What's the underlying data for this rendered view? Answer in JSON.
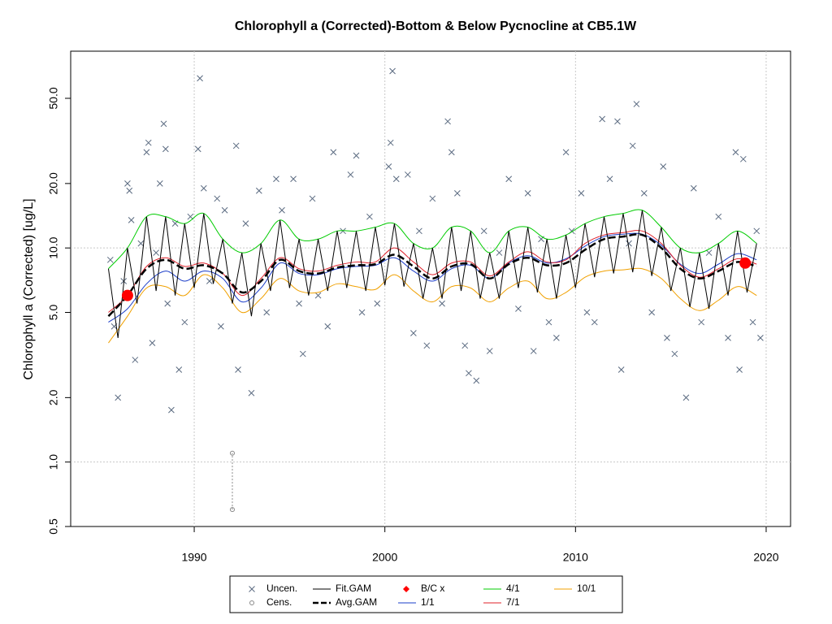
{
  "chart_data": {
    "type": "line",
    "title": "Chlorophyll a (Corrected)-Bottom & Below Pycnocline at CB5.1W",
    "y_label": "Chlorophyll a (Corrected) [ug/L]",
    "log_y": true,
    "xlim": [
      1983.52,
      2021.28
    ],
    "ylim": [
      0.5,
      83
    ],
    "xticks": [
      1990,
      2000,
      2010,
      2020
    ],
    "yticks": [
      0.5,
      {
        "value": 1,
        "label": "1.0"
      },
      {
        "value": 2,
        "label": "2.0"
      },
      {
        "value": 5,
        "label": "5.0"
      },
      {
        "value": 10,
        "label": "10.0"
      },
      {
        "value": 20,
        "label": "20.0"
      },
      {
        "value": 50,
        "label": "50.0"
      }
    ],
    "xgrid": [
      1990,
      2000,
      2010,
      2020
    ],
    "ygrid": [
      1,
      10
    ],
    "x": [
      1985.5,
      1986.5,
      1987.5,
      1988.5,
      1989.5,
      1990.5,
      1991.5,
      1992.5,
      1993.5,
      1994.5,
      1995.5,
      1996.5,
      1997.5,
      1998.5,
      1999.5,
      2000.5,
      2001.5,
      2002.5,
      2003.5,
      2004.5,
      2005.5,
      2006.5,
      2007.5,
      2008.5,
      2009.5,
      2010.5,
      2011.5,
      2012.5,
      2013.5,
      2014.5,
      2015.5,
      2016.5,
      2017.5,
      2018.5,
      2019.5
    ],
    "series": [
      {
        "name": "Uncen.",
        "kind": "points",
        "color": "#5a6a80",
        "x": [
          1985.6,
          1985.8,
          1986.0,
          1986.3,
          1986.5,
          1986.6,
          1986.7,
          1986.9,
          1987.2,
          1987.5,
          1987.6,
          1987.8,
          1988.0,
          1988.2,
          1988.4,
          1988.5,
          1988.6,
          1988.8,
          1989.0,
          1989.2,
          1989.5,
          1989.8,
          1990.2,
          1990.3,
          1990.5,
          1990.8,
          1991.2,
          1991.4,
          1991.6,
          1992.2,
          1992.3,
          1992.7,
          1993.0,
          1993.4,
          1993.8,
          1994.3,
          1994.6,
          1995.2,
          1995.5,
          1995.7,
          1996.2,
          1996.5,
          1997.0,
          1997.3,
          1997.8,
          1998.2,
          1998.5,
          1998.8,
          1999.2,
          1999.6,
          2000.2,
          2000.3,
          2000.4,
          2000.6,
          2001.2,
          2001.5,
          2001.8,
          2002.2,
          2002.5,
          2003.0,
          2003.3,
          2003.5,
          2003.8,
          2004.2,
          2004.4,
          2004.8,
          2005.2,
          2005.5,
          2006.0,
          2006.5,
          2007.0,
          2007.5,
          2007.8,
          2008.2,
          2008.6,
          2009.0,
          2009.5,
          2009.8,
          2010.3,
          2010.6,
          2011.0,
          2011.4,
          2011.8,
          2012.2,
          2012.4,
          2012.8,
          2013.0,
          2013.2,
          2013.6,
          2014.0,
          2014.6,
          2014.8,
          2015.2,
          2015.8,
          2016.2,
          2016.6,
          2017.0,
          2017.5,
          2018.0,
          2018.4,
          2018.6,
          2018.8,
          2019.3,
          2019.5,
          2019.7
        ],
        "values": [
          8.8,
          4.3,
          2.0,
          7.0,
          20,
          18.5,
          13.5,
          3.0,
          10.5,
          28,
          31,
          3.6,
          9.5,
          20,
          38,
          29,
          5.5,
          1.75,
          13,
          2.7,
          4.5,
          14,
          29,
          62,
          19,
          7.0,
          17,
          4.3,
          15,
          30,
          2.7,
          13,
          2.1,
          18.5,
          5.0,
          21,
          15,
          21,
          5.5,
          3.2,
          17,
          6.0,
          4.3,
          28,
          12,
          22,
          27,
          5.0,
          14,
          5.5,
          24,
          31,
          67,
          21,
          22,
          4.0,
          12,
          3.5,
          17,
          5.5,
          39,
          28,
          18,
          3.5,
          2.6,
          2.4,
          12,
          3.3,
          9.5,
          21,
          5.2,
          18,
          3.3,
          11,
          4.5,
          3.8,
          28,
          12,
          18,
          5.0,
          4.5,
          40,
          21,
          39,
          2.7,
          10.5,
          30,
          47,
          18,
          5.0,
          24,
          3.8,
          3.2,
          2.0,
          19,
          4.5,
          9.5,
          14,
          3.8,
          28,
          2.7,
          26,
          4.5,
          12,
          3.8
        ]
      },
      {
        "name": "Cens.",
        "kind": "censored",
        "color": "#888888",
        "x": [
          1992
        ],
        "low": [
          0.6
        ],
        "high": [
          1.1
        ]
      },
      {
        "name": "Fit.GAM",
        "kind": "line",
        "color": "#000000",
        "x": [
          1985.5,
          1986,
          1986.5,
          1987,
          1987.5,
          1988,
          1988.5,
          1989,
          1989.5,
          1990,
          1990.5,
          1991,
          1991.5,
          1992,
          1992.5,
          1993,
          1993.5,
          1994,
          1994.5,
          1995,
          1995.5,
          1996,
          1996.5,
          1997,
          1997.5,
          1998,
          1998.5,
          1999,
          1999.5,
          2000,
          2000.5,
          2001,
          2001.5,
          2002,
          2002.5,
          2003,
          2003.5,
          2004,
          2004.5,
          2005,
          2005.5,
          2006,
          2006.5,
          2007,
          2007.5,
          2008,
          2008.5,
          2009,
          2009.5,
          2010,
          2010.5,
          2011,
          2011.5,
          2012,
          2012.5,
          2013,
          2013.5,
          2014,
          2014.5,
          2015,
          2015.5,
          2016,
          2016.5,
          2017,
          2017.5,
          2018,
          2018.5,
          2019,
          2019.5
        ],
        "values": [
          8.0,
          3.8,
          10.0,
          5.5,
          14.0,
          6.3,
          14.0,
          6.0,
          13.0,
          6.5,
          14.5,
          6.8,
          11.0,
          5.5,
          9.5,
          4.8,
          10.5,
          6.3,
          13.5,
          6.5,
          11.0,
          6.0,
          11.0,
          6.3,
          12.0,
          6.5,
          12.0,
          6.3,
          12.5,
          6.7,
          13.0,
          6.6,
          10.5,
          5.8,
          10.0,
          5.8,
          12.5,
          6.3,
          12.0,
          5.8,
          9.5,
          5.8,
          12.0,
          6.5,
          12.5,
          6.2,
          11.0,
          5.8,
          11.5,
          6.5,
          13.0,
          7.3,
          14.0,
          7.6,
          14.5,
          7.7,
          15.0,
          7.4,
          12.5,
          6.3,
          10.0,
          5.3,
          9.5,
          5.2,
          10.5,
          6.0,
          12.0,
          6.2,
          10.5
        ]
      },
      {
        "name": "Avg.GAM",
        "kind": "dashed",
        "color": "#000000",
        "values": [
          4.8,
          6.0,
          8.0,
          8.8,
          8.0,
          8.3,
          7.6,
          6.2,
          7.0,
          8.8,
          7.8,
          7.6,
          8.1,
          8.3,
          8.4,
          9.3,
          8.2,
          7.2,
          8.2,
          8.4,
          7.2,
          8.4,
          9.0,
          8.3,
          8.5,
          9.8,
          11.0,
          11.3,
          11.5,
          10.0,
          8.0,
          7.2,
          7.8,
          8.6,
          8.2
        ]
      },
      {
        "name": "B/C x",
        "kind": "dots",
        "color": "#ff0000",
        "x": [
          1986.5,
          2018.9
        ],
        "values": [
          6.0,
          8.5
        ]
      },
      {
        "name": "1/1",
        "kind": "smooth",
        "color": "#1a3cc8",
        "values": [
          4.5,
          5.2,
          6.8,
          7.8,
          7.0,
          7.8,
          7.2,
          5.6,
          6.5,
          8.5,
          7.6,
          7.5,
          8.0,
          8.2,
          8.3,
          9.0,
          7.8,
          7.0,
          8.0,
          8.3,
          7.2,
          8.5,
          9.2,
          8.5,
          8.9,
          10.2,
          11.3,
          11.6,
          11.6,
          10.3,
          8.4,
          7.6,
          8.4,
          9.4,
          8.8
        ]
      },
      {
        "name": "4/1",
        "kind": "smooth",
        "color": "#00cc00",
        "values": [
          8.0,
          10.0,
          14.0,
          14.0,
          13.0,
          14.5,
          11.0,
          9.5,
          10.5,
          13.5,
          11.0,
          11.0,
          12.0,
          12.0,
          12.5,
          13.0,
          10.5,
          10.0,
          12.5,
          12.0,
          9.5,
          12.0,
          12.5,
          11.0,
          11.5,
          13.0,
          14.0,
          14.5,
          15.0,
          12.5,
          10.0,
          9.5,
          10.5,
          12.0,
          10.5
        ]
      },
      {
        "name": "7/1",
        "kind": "smooth",
        "color": "#e0202a",
        "values": [
          5.0,
          6.0,
          8.2,
          9.0,
          8.2,
          8.5,
          7.6,
          6.0,
          7.2,
          9.0,
          8.0,
          7.8,
          8.3,
          8.6,
          8.6,
          10.0,
          8.6,
          7.5,
          8.5,
          8.6,
          7.4,
          8.6,
          9.6,
          8.6,
          8.8,
          10.5,
          11.5,
          11.8,
          12.0,
          10.5,
          8.3,
          7.3,
          8.0,
          8.9,
          8.4
        ]
      },
      {
        "name": "10/1",
        "kind": "smooth",
        "color": "#f0a000",
        "values": [
          3.6,
          4.8,
          6.5,
          6.6,
          6.0,
          7.5,
          6.5,
          5.0,
          5.8,
          7.2,
          6.3,
          6.2,
          6.8,
          6.6,
          6.4,
          7.5,
          6.3,
          5.6,
          6.6,
          6.5,
          5.6,
          6.5,
          7.0,
          5.8,
          6.2,
          7.3,
          7.8,
          7.9,
          8.0,
          7.2,
          5.8,
          5.1,
          5.7,
          6.6,
          6.0
        ]
      }
    ]
  }
}
